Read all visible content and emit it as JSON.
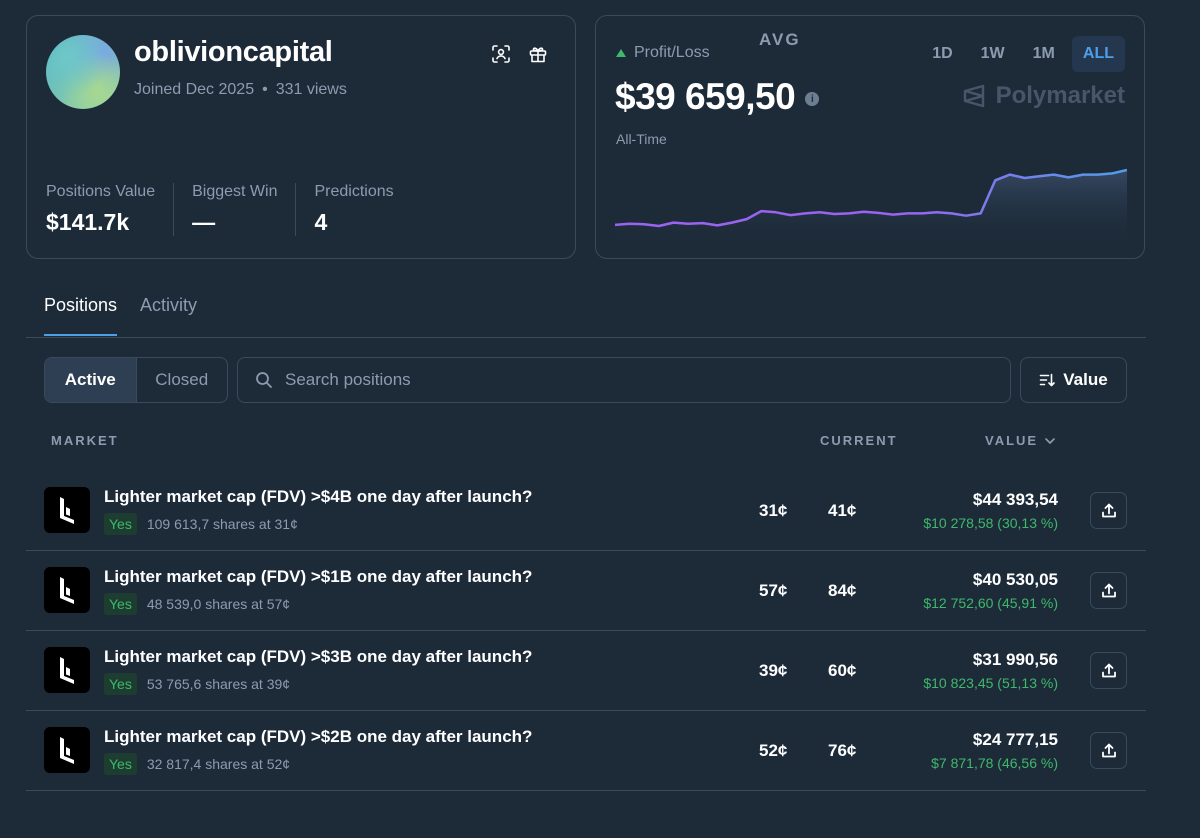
{
  "profile": {
    "username": "oblivioncapital",
    "joined": "Joined Dec 2025",
    "views": "331 views",
    "stats": [
      {
        "label": "Positions Value",
        "value": "$141.7k"
      },
      {
        "label": "Biggest Win",
        "value": "—"
      },
      {
        "label": "Predictions",
        "value": "4"
      }
    ]
  },
  "pnl": {
    "label": "Profit/Loss",
    "value": "$39 659,50",
    "sublabel": "All-Time",
    "brand": "Polymarket",
    "ranges": [
      "1D",
      "1W",
      "1M",
      "ALL"
    ],
    "active_range": "ALL",
    "trend_color": "#3fb86b"
  },
  "chart_data": {
    "type": "area",
    "values": [
      0.62,
      0.64,
      0.63,
      0.6,
      0.66,
      0.64,
      0.65,
      0.61,
      0.66,
      0.72,
      0.86,
      0.84,
      0.79,
      0.82,
      0.84,
      0.81,
      0.82,
      0.85,
      0.83,
      0.8,
      0.82,
      0.82,
      0.84,
      0.82,
      0.78,
      0.82,
      1.4,
      1.5,
      1.44,
      1.47,
      1.5,
      1.45,
      1.5,
      1.5,
      1.52,
      1.58
    ],
    "line_color": "#9a63f0",
    "line_color_end": "#4f9ee8"
  },
  "tabs": [
    {
      "label": "Positions",
      "active": true
    },
    {
      "label": "Activity",
      "active": false
    }
  ],
  "toolbar": {
    "filters": [
      "Active",
      "Closed"
    ],
    "search_placeholder": "Search positions",
    "sort_label": "Value"
  },
  "table": {
    "headers": {
      "market": "MARKET",
      "avg": "AVG",
      "current": "CURRENT",
      "value": "VALUE"
    },
    "rows": [
      {
        "title": "Lighter market cap (FDV) >$4B one day after launch?",
        "outcome": "Yes",
        "shares": "109 613,7 shares at 31¢",
        "avg": "31¢",
        "current": "41¢",
        "value": "$44 393,54",
        "pnl": "$10 278,58 (30,13 %)"
      },
      {
        "title": "Lighter market cap (FDV) >$1B one day after launch?",
        "outcome": "Yes",
        "shares": "48 539,0 shares at 57¢",
        "avg": "57¢",
        "current": "84¢",
        "value": "$40 530,05",
        "pnl": "$12 752,60 (45,91 %)"
      },
      {
        "title": "Lighter market cap (FDV) >$3B one day after launch?",
        "outcome": "Yes",
        "shares": "53 765,6 shares at 39¢",
        "avg": "39¢",
        "current": "60¢",
        "value": "$31 990,56",
        "pnl": "$10 823,45 (51,13 %)"
      },
      {
        "title": "Lighter market cap (FDV) >$2B one day after launch?",
        "outcome": "Yes",
        "shares": "32 817,4 shares at 52¢",
        "avg": "52¢",
        "current": "76¢",
        "value": "$24 777,15",
        "pnl": "$7 871,78 (46,56 %)"
      }
    ]
  }
}
